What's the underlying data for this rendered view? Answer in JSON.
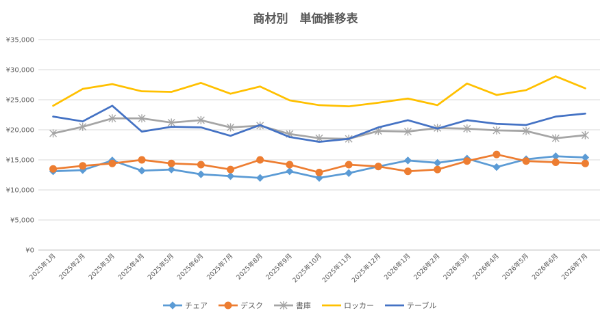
{
  "chart_data": {
    "type": "line",
    "title": "商材別　単価推移表",
    "xlabel": "",
    "ylabel": "",
    "ylim": [
      0,
      35000
    ],
    "yticks": [
      0,
      5000,
      10000,
      15000,
      20000,
      25000,
      30000,
      35000
    ],
    "ytick_labels": [
      "¥0",
      "¥5,000",
      "¥10,000",
      "¥15,000",
      "¥20,000",
      "¥25,000",
      "¥30,000",
      "¥35,000"
    ],
    "grid": true,
    "legend": "bottom",
    "categories": [
      "2025年1月",
      "2025年2月",
      "2025年3月",
      "2025年4月",
      "2025年5月",
      "2025年6月",
      "2025年7月",
      "2025年8月",
      "2025年9月",
      "2025年10月",
      "2025年11月",
      "2025年12月",
      "2026年1月",
      "2026年2月",
      "2026年3月",
      "2026年4月",
      "2026年5月",
      "2026年6月",
      "2026年7月"
    ],
    "series": [
      {
        "name": "チェア",
        "color": "#5b9bd5",
        "marker": "diamond",
        "values": [
          13100,
          13300,
          14900,
          13200,
          13400,
          12600,
          12300,
          12000,
          13100,
          12000,
          12800,
          13900,
          14900,
          14500,
          15200,
          13800,
          15100,
          15600,
          15400
        ]
      },
      {
        "name": "デスク",
        "color": "#ed7d31",
        "marker": "circle",
        "values": [
          13500,
          14000,
          14400,
          15000,
          14400,
          14200,
          13400,
          15000,
          14200,
          12900,
          14200,
          13900,
          13100,
          13400,
          14800,
          15900,
          14800,
          14600,
          14400
        ]
      },
      {
        "name": "書庫",
        "color": "#a5a5a5",
        "marker": "star",
        "values": [
          19400,
          20500,
          21900,
          21900,
          21200,
          21600,
          20400,
          20700,
          19300,
          18600,
          18500,
          19800,
          19700,
          20300,
          20200,
          19900,
          19800,
          18600,
          19100
        ]
      },
      {
        "name": "ロッカー",
        "color": "#ffc000",
        "marker": "none",
        "values": [
          24000,
          26800,
          27600,
          26400,
          26300,
          27800,
          26000,
          27200,
          24900,
          24100,
          23900,
          24500,
          25200,
          24100,
          27700,
          25800,
          26600,
          28900,
          26900
        ]
      },
      {
        "name": "テーブル",
        "color": "#4472c4",
        "marker": "none",
        "values": [
          22200,
          21400,
          24000,
          19700,
          20500,
          20400,
          19000,
          20800,
          18800,
          18000,
          18500,
          20400,
          21600,
          20200,
          21600,
          21000,
          20800,
          22200,
          22700
        ]
      }
    ]
  }
}
